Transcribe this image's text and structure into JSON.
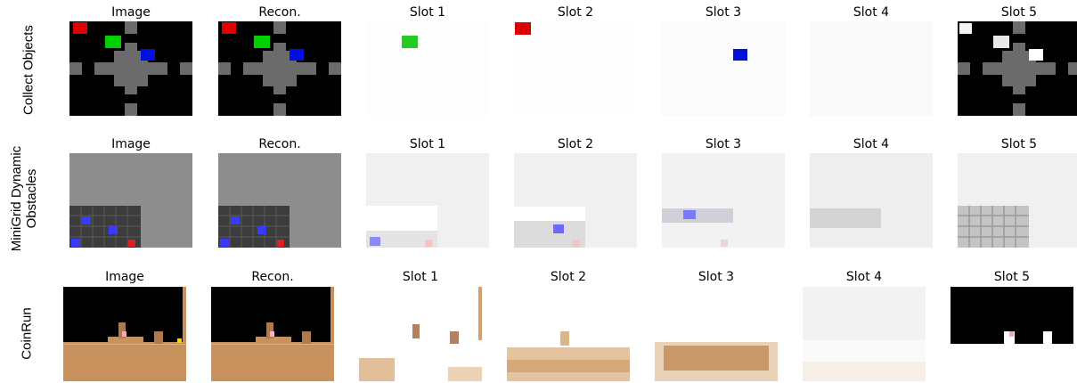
{
  "figure": {
    "column_titles": [
      "Image",
      "Recon.",
      "Slot 1",
      "Slot 2",
      "Slot 3",
      "Slot 4",
      "Slot 5"
    ],
    "rows": [
      {
        "label_lines": [
          "Collect Objects"
        ]
      },
      {
        "label_lines": [
          "MiniGrid Dynamic",
          "Obstacles"
        ]
      },
      {
        "label_lines": [
          "CoinRun"
        ]
      }
    ]
  }
}
